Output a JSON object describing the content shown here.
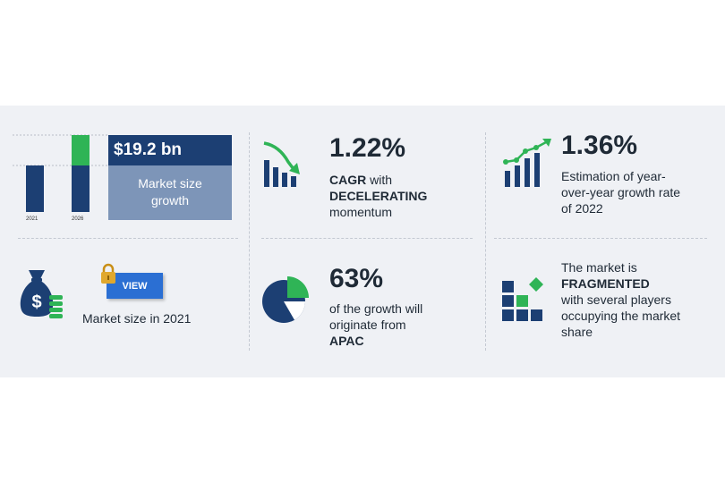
{
  "market_size": {
    "value": "$19.2 bn",
    "caption_line1": "Market size",
    "caption_line2": "growth",
    "year_start": "2021",
    "year_end": "2026",
    "view_label": "VIEW",
    "size_label": "Market size in 2021"
  },
  "cagr": {
    "value": "1.22%",
    "line1_bold": "CAGR",
    "line1_rest": " with",
    "line2_bold": "DECELERATING",
    "line3": "momentum"
  },
  "growth_share": {
    "value": "63%",
    "line1": "of the growth will",
    "line2": "originate from",
    "line3_bold": "APAC"
  },
  "yoy": {
    "value": "1.36%",
    "line1": "Estimation of year-",
    "line2": "over-year growth rate",
    "line3": "of 2022"
  },
  "market": {
    "line1": "The market is",
    "line2_bold": "FRAGMENTED",
    "line3": "with several players",
    "line4": "occupying the market",
    "line5": "share"
  },
  "colors": {
    "navy": "#1c3f73",
    "green": "#2fb456",
    "slate": "#7d95b8",
    "button_blue": "#2b6fd3",
    "lock_gold": "#e0a82e"
  }
}
